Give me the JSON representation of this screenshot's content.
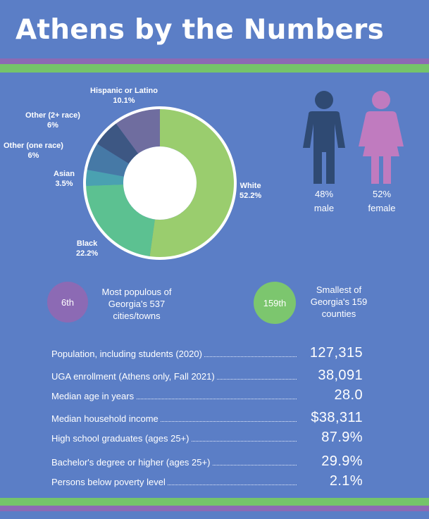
{
  "title": "Athens by the Numbers",
  "chart_data": {
    "type": "donut",
    "slices": [
      {
        "name": "White",
        "pct_label": "52.2%",
        "value": 52.2,
        "color": "#9acd6e"
      },
      {
        "name": "Black",
        "pct_label": "22.2%",
        "value": 22.2,
        "color": "#5cc191"
      },
      {
        "name": "Asian",
        "pct_label": "3.5%",
        "value": 3.5,
        "color": "#4aa1b1"
      },
      {
        "name": "Other (one race)",
        "pct_label": "6%",
        "value": 6,
        "color": "#4679a6"
      },
      {
        "name": "Other (2+ race)",
        "pct_label": "6%",
        "value": 6,
        "color": "#3d5783"
      },
      {
        "name": "Hispanic or Latino",
        "pct_label": "10.1%",
        "value": 10.1,
        "color": "#6f6d9f"
      }
    ]
  },
  "gender": {
    "male": {
      "pct": "48%",
      "label": "male",
      "color": "#2f4a73"
    },
    "female": {
      "pct": "52%",
      "label": "female",
      "color": "#c07bbf"
    }
  },
  "rankings": [
    {
      "rank": "6th",
      "text": "Most populous of Georgia's 537 cities/towns",
      "color": "#8c6ab4"
    },
    {
      "rank": "159th",
      "text": "Smallest of Georgia's 159 counties",
      "color": "#7cc66e"
    }
  ],
  "stats": [
    {
      "label": "Population, including students (2020)",
      "value": "127,315"
    },
    {
      "label": "UGA enrollment (Athens only, Fall 2021)",
      "value": "38,091"
    },
    {
      "label": "Median age in years",
      "value": "28.0"
    },
    {
      "label": "Median household income",
      "value": "$38,311"
    },
    {
      "label": "High school graduates (ages 25+)",
      "value": "87.9%"
    },
    {
      "label": "Bachelor's degree or higher (ages 25+)",
      "value": "29.9%"
    },
    {
      "label": "Persons below poverty level",
      "value": "2.1%"
    }
  ]
}
